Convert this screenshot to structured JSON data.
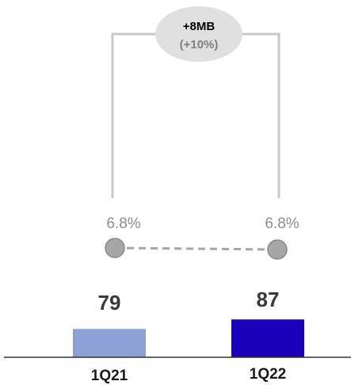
{
  "chart_data": {
    "type": "bar",
    "categories": [
      "1Q21",
      "1Q22"
    ],
    "values": [
      79,
      87
    ],
    "value_labels": [
      "79",
      "87"
    ],
    "secondary": {
      "type": "line",
      "values": [
        6.8,
        6.8
      ],
      "labels": [
        "6.8%",
        "6.8%"
      ],
      "style": "dashed"
    },
    "annotation": {
      "line1": "+8MB",
      "line2": "(+10%)"
    },
    "colors": {
      "bars": [
        "#8b9fd4",
        "#1a00b8"
      ],
      "dots": "#a6a6a6",
      "dashed_line": "#a6a6a6",
      "bracket": "#c8c8c8",
      "bubble": "#e0e0e0",
      "bubble_text_top": "#000000",
      "bubble_text_bottom": "#7f7f7f",
      "pct_text": "#8c8c8c",
      "value_text": "#3a3a3a",
      "category_text": "#1a1a1a",
      "axis": "#333333"
    }
  }
}
